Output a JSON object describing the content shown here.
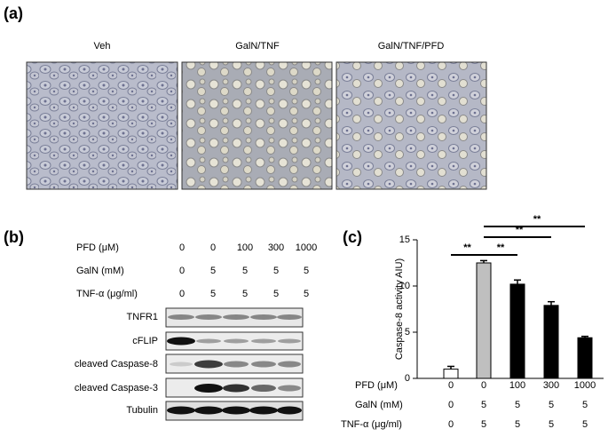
{
  "panel_a": {
    "label": "(a)",
    "images": [
      "Veh",
      "GalN/TNF",
      "GalN/TNF/PFD"
    ]
  },
  "panel_b": {
    "label": "(b)",
    "rows": [
      {
        "label": "PFD (μM)",
        "values": [
          "0",
          "0",
          "100",
          "300",
          "1000"
        ]
      },
      {
        "label": "GalN (mM)",
        "values": [
          "0",
          "5",
          "5",
          "5",
          "5"
        ]
      },
      {
        "label": "TNF-α (μg/ml)",
        "values": [
          "0",
          "5",
          "5",
          "5",
          "5"
        ]
      }
    ],
    "blots": [
      "TNFR1",
      "cFLIP",
      "cleaved Caspase-8",
      "cleaved Caspase-3",
      "Tubulin"
    ]
  },
  "panel_c": {
    "label": "(c)"
  },
  "chart_data": {
    "type": "bar",
    "y_label": "Caspase-8 activity AIU)",
    "categories": [
      "0",
      "0",
      "100",
      "300",
      "1000"
    ],
    "category_label": "PFD (μM)",
    "extra_rows": [
      {
        "label": "GalN (mM)",
        "values": [
          "0",
          "5",
          "5",
          "5",
          "5"
        ]
      },
      {
        "label": "TNF-α (μg/ml)",
        "values": [
          "0",
          "5",
          "5",
          "5",
          "5"
        ]
      }
    ],
    "values": [
      1.0,
      12.5,
      10.2,
      7.9,
      4.4
    ],
    "errors": [
      0.3,
      0.25,
      0.45,
      0.4,
      0.15
    ],
    "colors": [
      "#ffffff",
      "#bfbfbf",
      "#000000",
      "#000000",
      "#000000"
    ],
    "ylim": [
      0,
      15
    ],
    "yticks": [
      0,
      5,
      10,
      15
    ],
    "brackets": [
      {
        "label": "**",
        "from": 0,
        "to": 1
      },
      {
        "label": "**",
        "from": 1,
        "to": 2
      },
      {
        "label": "**",
        "from": 1,
        "to": 3
      },
      {
        "label": "**",
        "from": 1,
        "to": 4
      }
    ]
  }
}
